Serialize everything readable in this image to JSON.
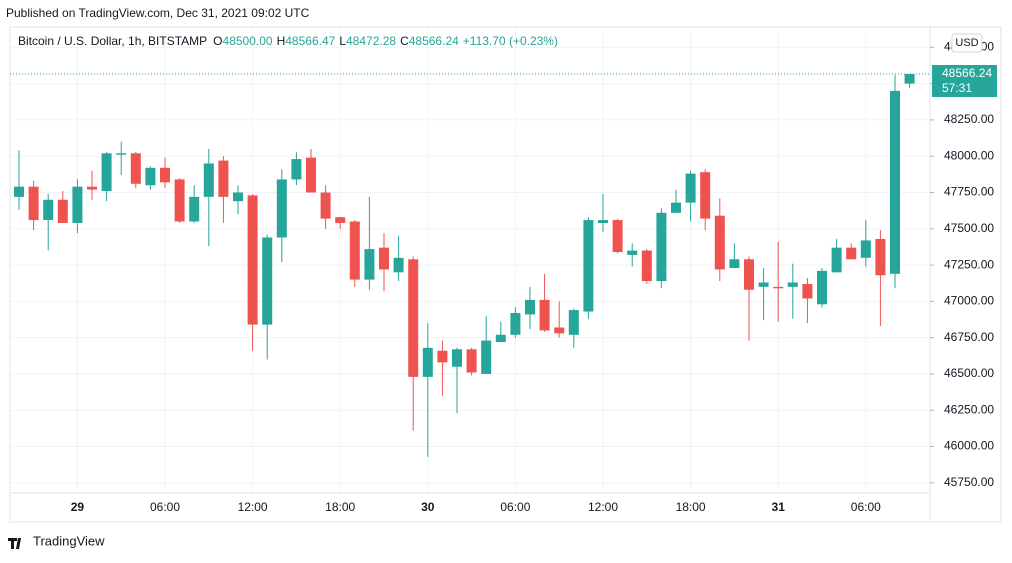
{
  "header": {
    "published": "Published on TradingView.com, Dec 31, 2021 09:02 UTC"
  },
  "footer": {
    "brand": "TradingView"
  },
  "chart_data": {
    "type": "candlestick",
    "title": "Bitcoin / U.S. Dollar, 1h, BITSTAMP",
    "ohlc_legend": [
      {
        "key": "O",
        "value": "48500.00"
      },
      {
        "key": "H",
        "value": "48566.47"
      },
      {
        "key": "L",
        "value": "48472.28"
      },
      {
        "key": "C",
        "value": "48566.24"
      }
    ],
    "change": "+113.70 (+0.23%)",
    "currency": "USD",
    "up_color": "#26a69a",
    "down_color": "#ef5350",
    "grid": true,
    "categories": [
      null,
      null,
      null,
      null,
      "29",
      null,
      null,
      null,
      null,
      null,
      "06:00",
      null,
      null,
      null,
      null,
      null,
      "12:00",
      null,
      null,
      null,
      null,
      null,
      "18:00",
      null,
      null,
      null,
      null,
      null,
      "30",
      null,
      null,
      null,
      null,
      null,
      "06:00",
      null,
      null,
      null,
      null,
      null,
      "12:00",
      null,
      null,
      null,
      null,
      null,
      "18:00",
      null,
      null,
      null,
      null,
      null,
      "31",
      null,
      null,
      null,
      null,
      null,
      "06:00",
      null,
      null,
      null
    ],
    "open": [
      47720,
      47790,
      47560,
      47700,
      47540,
      47790,
      47760,
      48010,
      48020,
      47800,
      47920,
      47840,
      47550,
      47720,
      47970,
      47690,
      47730,
      46840,
      47440,
      47840,
      47990,
      47750,
      47580,
      47550,
      47150,
      47370,
      47200,
      47290,
      46480,
      46660,
      46550,
      46670,
      46500,
      46720,
      46770,
      46910,
      47010,
      46820,
      46770,
      46930,
      47540,
      47560,
      47320,
      47350,
      47140,
      47610,
      47680,
      47890,
      47590,
      47230,
      47290,
      47100,
      47100,
      47100,
      47120,
      46980,
      47200,
      47370,
      47300,
      47430,
      47190,
      48500
    ],
    "high": [
      48040,
      47830,
      47740,
      47760,
      47840,
      47900,
      48030,
      48100,
      48030,
      47930,
      47990,
      47850,
      47800,
      48050,
      48000,
      47800,
      47740,
      47460,
      47910,
      48030,
      48050,
      47800,
      47580,
      47560,
      47720,
      47470,
      47450,
      47310,
      46850,
      46730,
      46680,
      46680,
      46900,
      46860,
      46960,
      47100,
      47190,
      47000,
      46950,
      47580,
      47740,
      47570,
      47400,
      47360,
      47640,
      47770,
      47900,
      47910,
      47710,
      47400,
      47310,
      47230,
      47410,
      47260,
      47160,
      47230,
      47430,
      47400,
      47560,
      47490,
      48560,
      48566.47
    ],
    "low": [
      47630,
      47490,
      47350,
      47540,
      47470,
      47700,
      47690,
      47870,
      47780,
      47770,
      47780,
      47540,
      47540,
      47380,
      47540,
      47600,
      46660,
      46600,
      47270,
      47800,
      47750,
      47500,
      47500,
      47100,
      47080,
      47070,
      47140,
      46110,
      45930,
      46350,
      46230,
      46490,
      46500,
      46740,
      46750,
      46810,
      46790,
      46750,
      46680,
      46880,
      47480,
      47330,
      47240,
      47120,
      47090,
      47610,
      47550,
      47490,
      47140,
      47230,
      46730,
      46870,
      46860,
      46880,
      46850,
      46960,
      47200,
      47290,
      47240,
      46830,
      47090,
      48472.28
    ],
    "close": [
      47790,
      47560,
      47700,
      47540,
      47790,
      47770,
      48020,
      48020,
      47810,
      47920,
      47820,
      47550,
      47720,
      47950,
      47720,
      47750,
      46840,
      47440,
      47840,
      47980,
      47750,
      47570,
      47540,
      47150,
      47360,
      47220,
      47300,
      46480,
      46680,
      46580,
      46670,
      46510,
      46730,
      46770,
      46920,
      47010,
      46800,
      46780,
      46940,
      47560,
      47560,
      47340,
      47350,
      47140,
      47610,
      47680,
      47880,
      47570,
      47220,
      47290,
      47080,
      47130,
      47090,
      47130,
      47020,
      47210,
      47370,
      47290,
      47420,
      47180,
      48450,
      48566.24
    ],
    "last_price": {
      "value": 48566.24,
      "label": "48566.24",
      "countdown": "57:31"
    },
    "ylim": [
      45680,
      48890
    ],
    "yticks": [
      {
        "value": 45750,
        "label": "45750.00"
      },
      {
        "value": 46000,
        "label": "46000.00"
      },
      {
        "value": 46250,
        "label": "46250.00"
      },
      {
        "value": 46500,
        "label": "46500.00"
      },
      {
        "value": 46750,
        "label": "46750.00"
      },
      {
        "value": 47000,
        "label": "47000.00"
      },
      {
        "value": 47250,
        "label": "47250.00"
      },
      {
        "value": 47500,
        "label": "47500.00"
      },
      {
        "value": 47750,
        "label": "47750.00"
      },
      {
        "value": 48000,
        "label": "48000.00"
      },
      {
        "value": 48250,
        "label": "48250.00"
      },
      {
        "value": 48500,
        "label": "48500.00"
      },
      {
        "value": 48750,
        "label": "48750.00"
      }
    ]
  }
}
